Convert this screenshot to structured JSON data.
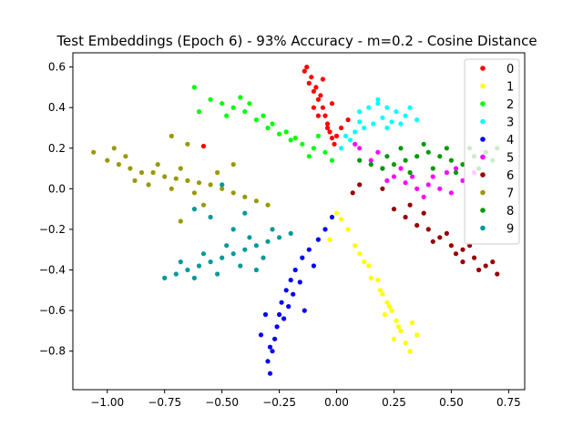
{
  "chart_data": {
    "type": "scatter",
    "title": "Test Embeddings (Epoch 6) - 93% Accuracy - m=0.2 - Cosine Distance",
    "xlabel": "",
    "ylabel": "",
    "xlim": [
      -1.15,
      0.82
    ],
    "ylim": [
      -0.99,
      0.67
    ],
    "x_ticks": [
      -1.0,
      -0.75,
      -0.5,
      -0.25,
      0.0,
      0.25,
      0.5,
      0.75
    ],
    "x_tick_labels": [
      "−1.00",
      "−0.75",
      "−0.50",
      "−0.25",
      "0.00",
      "0.25",
      "0.50",
      "0.75"
    ],
    "y_ticks": [
      -0.8,
      -0.6,
      -0.4,
      -0.2,
      0.0,
      0.2,
      0.4,
      0.6
    ],
    "y_tick_labels": [
      "−0.8",
      "−0.6",
      "−0.4",
      "−0.2",
      "0.0",
      "0.2",
      "0.4",
      "0.6"
    ],
    "grid": false,
    "legend_position": "top-right",
    "series": [
      {
        "name": "0",
        "color": "#ff0000",
        "points": [
          [
            -0.14,
            0.58
          ],
          [
            -0.12,
            0.52
          ],
          [
            -0.1,
            0.48
          ],
          [
            -0.08,
            0.44
          ],
          [
            -0.06,
            0.4
          ],
          [
            -0.05,
            0.36
          ],
          [
            -0.04,
            0.32
          ],
          [
            -0.03,
            0.28
          ],
          [
            -0.02,
            0.25
          ],
          [
            -0.09,
            0.5
          ],
          [
            -0.07,
            0.46
          ],
          [
            -0.11,
            0.55
          ],
          [
            -0.13,
            0.6
          ],
          [
            -0.04,
            0.3
          ],
          [
            0.0,
            0.26
          ],
          [
            0.02,
            0.3
          ],
          [
            -0.01,
            0.22
          ],
          [
            -0.08,
            0.36
          ],
          [
            -0.1,
            0.4
          ],
          [
            0.05,
            0.34
          ],
          [
            -0.58,
            0.21
          ],
          [
            -0.06,
            0.54
          ],
          [
            -0.02,
            0.42
          ]
        ]
      },
      {
        "name": "1",
        "color": "#ffff00",
        "points": [
          [
            0.0,
            -0.12
          ],
          [
            0.05,
            -0.2
          ],
          [
            0.1,
            -0.32
          ],
          [
            0.14,
            -0.38
          ],
          [
            0.18,
            -0.45
          ],
          [
            0.2,
            -0.52
          ],
          [
            0.22,
            -0.56
          ],
          [
            0.24,
            -0.6
          ],
          [
            0.26,
            -0.65
          ],
          [
            0.28,
            -0.7
          ],
          [
            0.3,
            -0.76
          ],
          [
            0.32,
            -0.8
          ],
          [
            0.27,
            -0.68
          ],
          [
            0.23,
            -0.58
          ],
          [
            0.19,
            -0.5
          ],
          [
            0.15,
            -0.44
          ],
          [
            0.12,
            -0.36
          ],
          [
            0.08,
            -0.28
          ],
          [
            0.02,
            -0.15
          ],
          [
            0.35,
            -0.72
          ],
          [
            0.33,
            -0.66
          ],
          [
            0.25,
            -0.74
          ],
          [
            -0.03,
            -0.25
          ],
          [
            0.21,
            -0.62
          ]
        ]
      },
      {
        "name": "2",
        "color": "#00ff00",
        "points": [
          [
            -0.55,
            0.44
          ],
          [
            -0.5,
            0.42
          ],
          [
            -0.45,
            0.4
          ],
          [
            -0.4,
            0.38
          ],
          [
            -0.35,
            0.34
          ],
          [
            -0.3,
            0.3
          ],
          [
            -0.25,
            0.27
          ],
          [
            -0.2,
            0.24
          ],
          [
            -0.15,
            0.22
          ],
          [
            -0.1,
            0.2
          ],
          [
            -0.05,
            0.18
          ],
          [
            -0.42,
            0.45
          ],
          [
            -0.38,
            0.42
          ],
          [
            -0.32,
            0.36
          ],
          [
            -0.28,
            0.32
          ],
          [
            -0.22,
            0.28
          ],
          [
            -0.18,
            0.25
          ],
          [
            -0.12,
            0.16
          ],
          [
            -0.62,
            0.5
          ],
          [
            -0.6,
            0.38
          ],
          [
            -0.48,
            0.36
          ],
          [
            -0.08,
            0.26
          ],
          [
            -0.02,
            0.14
          ]
        ]
      },
      {
        "name": "3",
        "color": "#00ffff",
        "points": [
          [
            0.1,
            0.38
          ],
          [
            0.14,
            0.4
          ],
          [
            0.18,
            0.42
          ],
          [
            0.22,
            0.4
          ],
          [
            0.26,
            0.38
          ],
          [
            0.3,
            0.36
          ],
          [
            0.2,
            0.35
          ],
          [
            0.24,
            0.33
          ],
          [
            0.16,
            0.32
          ],
          [
            0.12,
            0.3
          ],
          [
            0.08,
            0.28
          ],
          [
            0.04,
            0.26
          ],
          [
            0.28,
            0.32
          ],
          [
            0.32,
            0.4
          ],
          [
            0.18,
            0.44
          ],
          [
            0.1,
            0.33
          ],
          [
            0.22,
            0.3
          ],
          [
            0.06,
            0.24
          ],
          [
            0.35,
            0.34
          ],
          [
            0.02,
            0.2
          ]
        ]
      },
      {
        "name": "4",
        "color": "#0000ff",
        "points": [
          [
            -0.28,
            -0.8
          ],
          [
            -0.27,
            -0.74
          ],
          [
            -0.26,
            -0.68
          ],
          [
            -0.25,
            -0.62
          ],
          [
            -0.24,
            -0.56
          ],
          [
            -0.22,
            -0.5
          ],
          [
            -0.2,
            -0.45
          ],
          [
            -0.18,
            -0.4
          ],
          [
            -0.15,
            -0.34
          ],
          [
            -0.12,
            -0.3
          ],
          [
            -0.08,
            -0.25
          ],
          [
            -0.05,
            -0.2
          ],
          [
            -0.3,
            -0.85
          ],
          [
            -0.29,
            -0.78
          ],
          [
            -0.23,
            -0.64
          ],
          [
            -0.21,
            -0.58
          ],
          [
            -0.19,
            -0.52
          ],
          [
            -0.16,
            -0.46
          ],
          [
            -0.1,
            -0.38
          ],
          [
            -0.33,
            -0.72
          ],
          [
            -0.14,
            -0.6
          ],
          [
            -0.31,
            -0.62
          ],
          [
            -0.02,
            -0.14
          ],
          [
            -0.29,
            -0.91
          ]
        ]
      },
      {
        "name": "5",
        "color": "#ff00ff",
        "points": [
          [
            0.1,
            0.2
          ],
          [
            0.15,
            0.14
          ],
          [
            0.2,
            0.1
          ],
          [
            0.25,
            0.06
          ],
          [
            0.3,
            0.03
          ],
          [
            0.35,
            0.0
          ],
          [
            0.4,
            0.02
          ],
          [
            0.45,
            0.0
          ],
          [
            0.5,
            -0.02
          ],
          [
            0.55,
            0.04
          ],
          [
            0.6,
            0.08
          ],
          [
            0.22,
            0.04
          ],
          [
            0.28,
            0.1
          ],
          [
            0.33,
            0.06
          ],
          [
            0.38,
            -0.04
          ],
          [
            0.42,
            0.06
          ],
          [
            0.48,
            0.08
          ],
          [
            0.18,
            0.18
          ],
          [
            0.08,
            0.22
          ],
          [
            0.52,
            0.1
          ]
        ]
      },
      {
        "name": "6",
        "color": "#990000",
        "points": [
          [
            0.25,
            -0.1
          ],
          [
            0.3,
            -0.14
          ],
          [
            0.35,
            -0.18
          ],
          [
            0.4,
            -0.2
          ],
          [
            0.45,
            -0.24
          ],
          [
            0.5,
            -0.28
          ],
          [
            0.55,
            -0.3
          ],
          [
            0.6,
            -0.34
          ],
          [
            0.65,
            -0.38
          ],
          [
            0.7,
            -0.42
          ],
          [
            0.42,
            -0.26
          ],
          [
            0.48,
            -0.22
          ],
          [
            0.52,
            -0.32
          ],
          [
            0.58,
            -0.28
          ],
          [
            0.62,
            -0.4
          ],
          [
            0.38,
            -0.12
          ],
          [
            0.32,
            -0.08
          ],
          [
            0.68,
            -0.36
          ],
          [
            0.55,
            -0.36
          ],
          [
            0.1,
            0.02
          ],
          [
            0.07,
            -0.02
          ],
          [
            0.2,
            0.0
          ]
        ]
      },
      {
        "name": "7",
        "color": "#999900",
        "points": [
          [
            -1.0,
            0.14
          ],
          [
            -0.95,
            0.12
          ],
          [
            -0.9,
            0.1
          ],
          [
            -0.85,
            0.08
          ],
          [
            -0.8,
            0.08
          ],
          [
            -0.75,
            0.06
          ],
          [
            -0.7,
            0.05
          ],
          [
            -0.65,
            0.04
          ],
          [
            -0.6,
            0.03
          ],
          [
            -0.55,
            0.02
          ],
          [
            -0.5,
            0.0
          ],
          [
            -0.45,
            -0.02
          ],
          [
            -0.4,
            -0.04
          ],
          [
            -0.35,
            -0.06
          ],
          [
            -0.3,
            -0.08
          ],
          [
            -0.92,
            0.16
          ],
          [
            -0.82,
            0.02
          ],
          [
            -0.78,
            0.12
          ],
          [
            -0.68,
            0.1
          ],
          [
            -0.62,
            -0.02
          ],
          [
            -0.72,
            0.0
          ],
          [
            -0.88,
            0.04
          ],
          [
            -0.52,
            0.08
          ],
          [
            -0.45,
            0.12
          ],
          [
            -0.58,
            -0.08
          ],
          [
            -0.68,
            -0.16
          ],
          [
            -0.65,
            0.22
          ],
          [
            -0.72,
            0.26
          ],
          [
            -1.06,
            0.18
          ],
          [
            -0.97,
            0.2
          ]
        ]
      },
      {
        "name": "8",
        "color": "#009900",
        "points": [
          [
            0.1,
            0.14
          ],
          [
            0.15,
            0.12
          ],
          [
            0.2,
            0.1
          ],
          [
            0.25,
            0.12
          ],
          [
            0.3,
            0.14
          ],
          [
            0.35,
            0.16
          ],
          [
            0.4,
            0.18
          ],
          [
            0.45,
            0.16
          ],
          [
            0.5,
            0.14
          ],
          [
            0.55,
            0.12
          ],
          [
            0.6,
            0.16
          ],
          [
            0.65,
            0.18
          ],
          [
            0.7,
            0.2
          ],
          [
            0.28,
            0.2
          ],
          [
            0.38,
            0.22
          ],
          [
            0.48,
            0.2
          ],
          [
            0.58,
            0.2
          ],
          [
            0.42,
            0.1
          ],
          [
            0.52,
            0.08
          ],
          [
            0.62,
            0.1
          ],
          [
            0.32,
            0.08
          ],
          [
            0.22,
            0.16
          ],
          [
            0.68,
            0.14
          ]
        ]
      },
      {
        "name": "9",
        "color": "#009999",
        "points": [
          [
            -0.7,
            -0.42
          ],
          [
            -0.65,
            -0.4
          ],
          [
            -0.6,
            -0.38
          ],
          [
            -0.55,
            -0.36
          ],
          [
            -0.5,
            -0.34
          ],
          [
            -0.45,
            -0.32
          ],
          [
            -0.4,
            -0.3
          ],
          [
            -0.35,
            -0.28
          ],
          [
            -0.3,
            -0.26
          ],
          [
            -0.25,
            -0.24
          ],
          [
            -0.2,
            -0.22
          ],
          [
            -0.62,
            -0.44
          ],
          [
            -0.52,
            -0.42
          ],
          [
            -0.42,
            -0.38
          ],
          [
            -0.32,
            -0.34
          ],
          [
            -0.48,
            -0.28
          ],
          [
            -0.38,
            -0.24
          ],
          [
            -0.28,
            -0.2
          ],
          [
            -0.58,
            -0.32
          ],
          [
            -0.68,
            -0.36
          ],
          [
            -0.45,
            -0.2
          ],
          [
            -0.55,
            -0.14
          ],
          [
            -0.62,
            -0.1
          ],
          [
            -0.5,
            0.02
          ],
          [
            -0.4,
            -0.12
          ],
          [
            -0.75,
            -0.44
          ],
          [
            -0.35,
            -0.4
          ]
        ]
      }
    ]
  }
}
